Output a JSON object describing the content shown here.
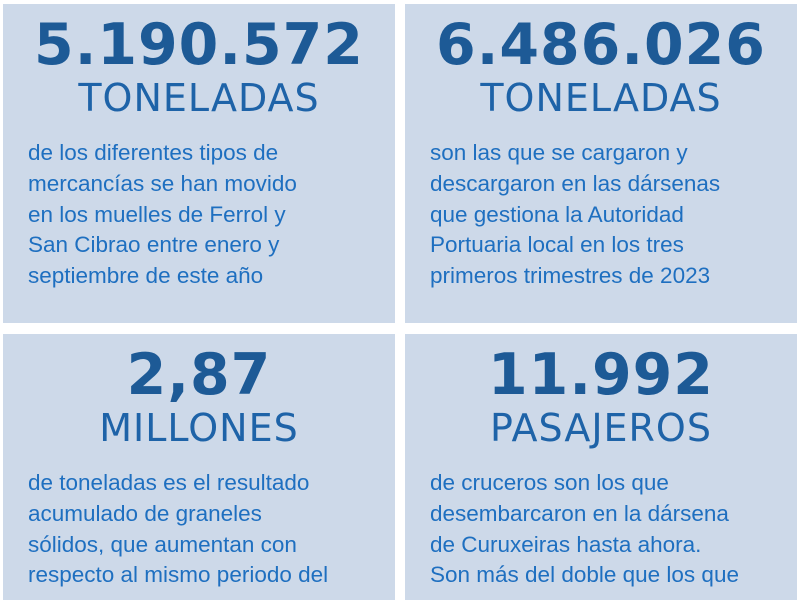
{
  "cards": [
    {
      "number": "5.190.572",
      "unit": "TONELADAS",
      "description": "de los diferentes tipos de\nmercancías se han movido\nen los muelles de Ferrol y\nSan Cibrao entre enero y\nseptiembre de este año"
    },
    {
      "number": "6.486.026",
      "unit": "TONELADAS",
      "description": "son las que se cargaron y\ndescargaron en las dársenas\nque gestiona la Autoridad\nPortuaria local en los tres\nprimeros trimestres de 2023"
    },
    {
      "number": "2,87",
      "unit": "MILLONES",
      "description": "de toneladas es el resultado\nacumulado de graneles\nsólidos, que aumentan con\nrespecto al mismo periodo del"
    },
    {
      "number": "11.992",
      "unit": "PASAJEROS",
      "description": "de cruceros son los que\ndesembarcaron en la dársena\nde Curuxeiras hasta ahora.\nSon más del doble que los que"
    }
  ],
  "colors": {
    "card_background": "#cdd9e9",
    "number_color": "#1d5a96",
    "unit_color": "#1e63a8",
    "text_color": "#1e6fc0"
  }
}
